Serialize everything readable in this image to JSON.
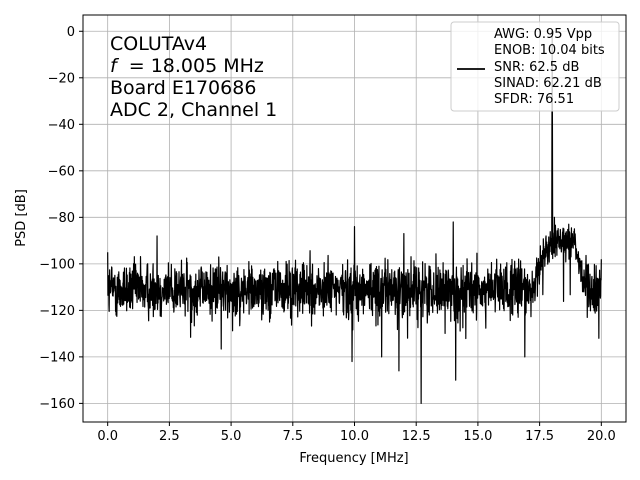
{
  "chart_data": {
    "type": "line",
    "xlabel": "Frequency [MHz]",
    "ylabel": "PSD [dB]",
    "xlim": [
      -1.0,
      21.0
    ],
    "ylim": [
      -168,
      7
    ],
    "xticks": [
      0.0,
      2.5,
      5.0,
      7.5,
      10.0,
      12.5,
      15.0,
      17.5,
      20.0
    ],
    "xtick_labels": [
      "0.0",
      "2.5",
      "5.0",
      "7.5",
      "10.0",
      "12.5",
      "15.0",
      "17.5",
      "20.0"
    ],
    "yticks": [
      0,
      -20,
      -40,
      -60,
      -80,
      -100,
      -120,
      -140,
      -160
    ],
    "ytick_labels": [
      "0",
      "−20",
      "−40",
      "−60",
      "−80",
      "−100",
      "−120",
      "−140",
      "−160"
    ],
    "grid": true,
    "legend_position": "top-right",
    "annotation_lines": [
      "COLUTAv4",
      "= 18.005 MHz",
      "Board E170686",
      "ADC 2, Channel 1"
    ],
    "annotation_italic_prefix": "f",
    "legend_lines": [
      "AWG: 0.95 Vpp",
      "ENOB: 10.04 bits",
      "SNR: 62.5 dB",
      "SINAD: 62.21 dB",
      "SFDR: 76.51"
    ],
    "series_color": "#000000",
    "noise_floor_db": -111,
    "noise_spread_db": 6,
    "fundamental": {
      "x": 18.005,
      "y": 0
    },
    "bump_region": {
      "x_start": 17.2,
      "x_end": 19.5,
      "level_db": -90
    },
    "spurs": [
      {
        "x": 0.0,
        "y": -95
      },
      {
        "x": 2.0,
        "y": -88
      },
      {
        "x": 10.0,
        "y": -84
      },
      {
        "x": 12.0,
        "y": -87
      },
      {
        "x": 14.0,
        "y": -82
      },
      {
        "x": 20.0,
        "y": -98
      },
      {
        "x": 18.1,
        "y": -80
      },
      {
        "x": 9.9,
        "y": -142
      },
      {
        "x": 11.1,
        "y": -140
      },
      {
        "x": 11.8,
        "y": -146
      },
      {
        "x": 12.7,
        "y": -160
      },
      {
        "x": 14.1,
        "y": -150
      },
      {
        "x": 16.9,
        "y": -140
      },
      {
        "x": 19.9,
        "y": -132
      }
    ]
  }
}
